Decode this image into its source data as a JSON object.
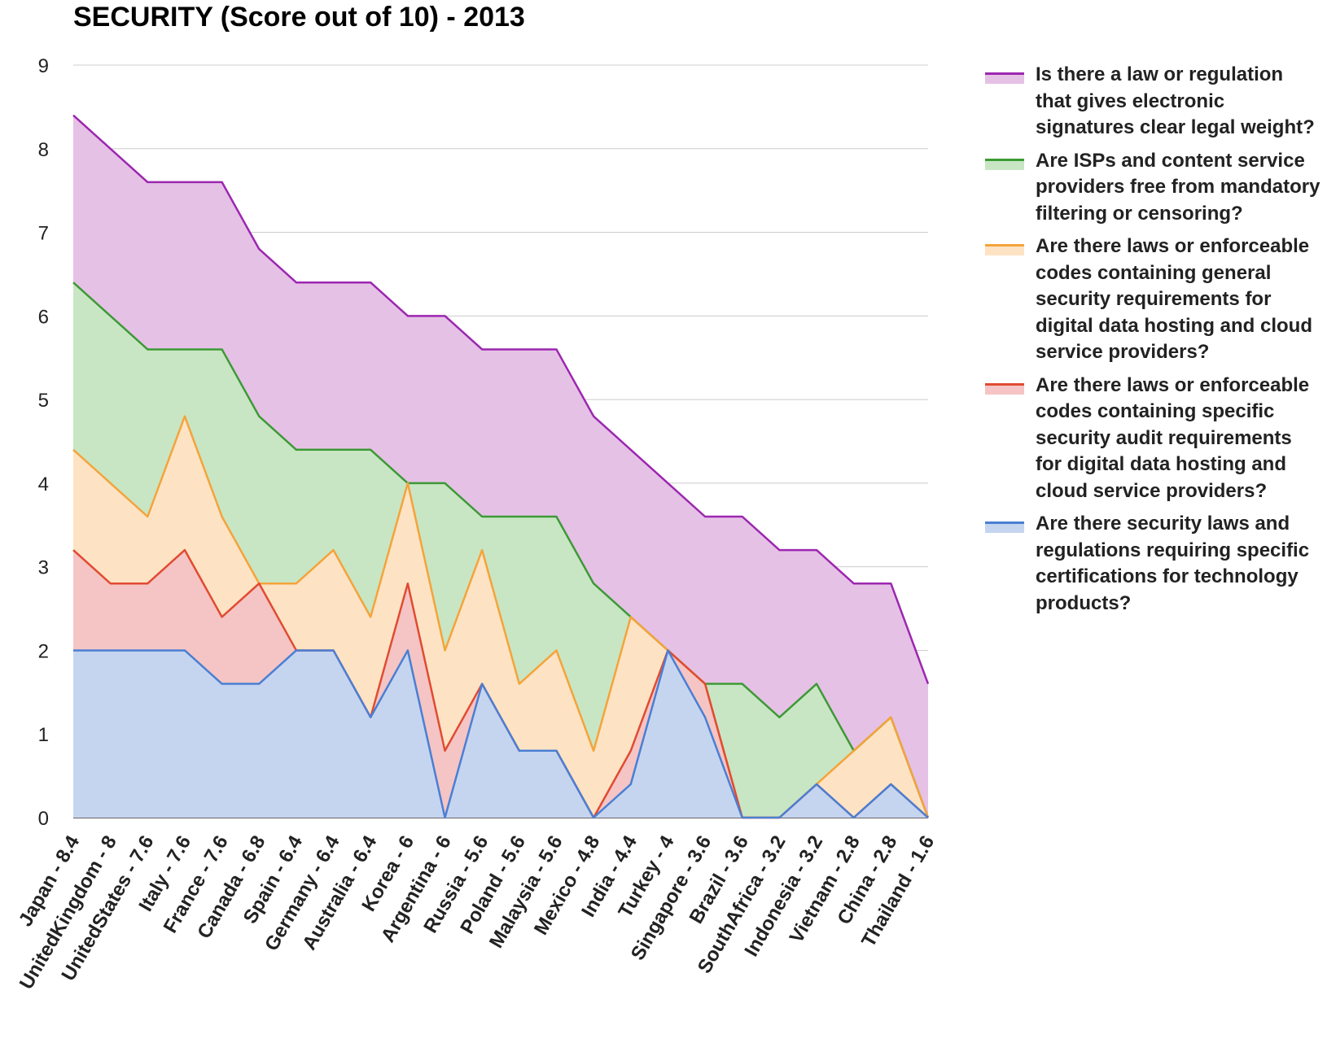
{
  "chart_data": {
    "type": "area",
    "stacked": false,
    "title": "SECURITY (Score out of 10) - 2013",
    "ylim": [
      0,
      9
    ],
    "yticks": [
      0,
      1,
      2,
      3,
      4,
      5,
      6,
      7,
      8,
      9
    ],
    "grid": true,
    "legend_position": "right",
    "categories": [
      "Japan - 8.4",
      "UnitedKingdom - 8",
      "UnitedStates - 7.6",
      "Italy - 7.6",
      "France - 7.6",
      "Canada - 6.8",
      "Spain - 6.4",
      "Germany - 6.4",
      "Australia - 6.4",
      "Korea - 6",
      "Argentina - 6",
      "Russia - 5.6",
      "Poland - 5.6",
      "Malaysia - 5.6",
      "Mexico - 4.8",
      "India - 4.4",
      "Turkey - 4",
      "Singapore - 3.6",
      "Brazil - 3.6",
      "SouthAfrica - 3.2",
      "Indonesia - 3.2",
      "Vietnam - 2.8",
      "China - 2.8",
      "Thailand - 1.6"
    ],
    "series": [
      {
        "name": "Is there a law or regulation that gives electronic signatures clear legal weight?",
        "color": "#9c27b0",
        "fill": "#e6c1e6",
        "values": [
          8.4,
          8.0,
          7.6,
          7.6,
          7.6,
          6.8,
          6.4,
          6.4,
          6.4,
          6.0,
          6.0,
          5.6,
          5.6,
          5.6,
          4.8,
          4.4,
          4.0,
          3.6,
          3.6,
          3.2,
          3.2,
          2.8,
          2.8,
          1.6
        ]
      },
      {
        "name": "Are ISPs and content service providers free from mandatory filtering or censoring?",
        "color": "#3c9a35",
        "fill": "#c8e6c4",
        "values": [
          6.4,
          6.0,
          5.6,
          5.6,
          5.6,
          4.8,
          4.4,
          4.4,
          4.4,
          4.0,
          4.0,
          3.6,
          3.6,
          3.6,
          2.8,
          2.4,
          2.0,
          1.6,
          1.6,
          1.2,
          1.6,
          0.8,
          1.2,
          0.0
        ]
      },
      {
        "name": "Are there laws or enforceable codes containing general security requirements for digital data hosting and cloud service providers?",
        "color": "#f5a33a",
        "fill": "#fde3c4",
        "values": [
          4.4,
          4.0,
          3.6,
          4.8,
          3.6,
          2.8,
          2.8,
          3.2,
          2.4,
          4.0,
          2.0,
          3.2,
          1.6,
          2.0,
          0.8,
          2.4,
          2.0,
          1.6,
          0.0,
          0.0,
          0.4,
          0.8,
          1.2,
          0.0
        ]
      },
      {
        "name": "Are there laws or enforceable codes containing specific security audit requirements for digital data hosting and cloud service providers?",
        "color": "#e14b32",
        "fill": "#f4c5c4",
        "values": [
          3.2,
          2.8,
          2.8,
          3.2,
          2.4,
          2.8,
          2.0,
          2.0,
          1.2,
          2.8,
          0.8,
          1.6,
          0.8,
          0.8,
          0.0,
          0.8,
          2.0,
          1.6,
          0.0,
          0.0,
          0.4,
          0.0,
          0.4,
          0.0
        ]
      },
      {
        "name": "Are there security laws and regulations requiring specific certifications for technology products?",
        "color": "#4a7fd4",
        "fill": "#c6d5ef",
        "values": [
          2.0,
          2.0,
          2.0,
          2.0,
          1.6,
          1.6,
          2.0,
          2.0,
          1.2,
          2.0,
          0.0,
          1.6,
          0.8,
          0.8,
          0.0,
          0.4,
          2.0,
          1.2,
          0.0,
          0.0,
          0.4,
          0.0,
          0.4,
          0.0
        ]
      }
    ]
  }
}
